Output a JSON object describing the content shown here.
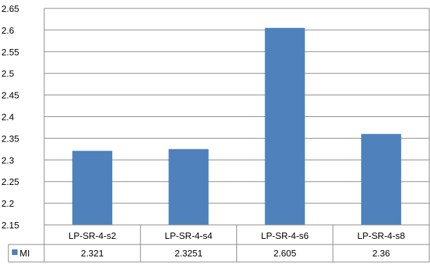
{
  "chart_data": {
    "type": "bar",
    "categories": [
      "LP-SR-4-s2",
      "LP-SR-4-s4",
      "LP-SR-4-s6",
      "LP-SR-4-s8"
    ],
    "series": [
      {
        "name": "MI",
        "values": [
          2.321,
          2.3251,
          2.605,
          2.36
        ],
        "color": "#4F81BD"
      }
    ],
    "table_values": [
      "2.321",
      "2.3251",
      "2.605",
      "2.36"
    ],
    "y_ticks": [
      "2.65",
      "2.6",
      "2.55",
      "2.5",
      "2.45",
      "2.4",
      "2.35",
      "2.3",
      "2.25",
      "2.2",
      "2.15"
    ],
    "ylim": [
      2.15,
      2.65
    ],
    "grid": true,
    "legend": "data-table",
    "title": "",
    "xlabel": "",
    "ylabel": ""
  }
}
